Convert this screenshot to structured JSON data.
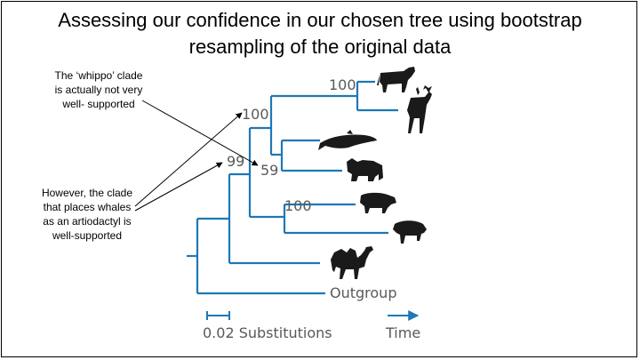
{
  "slide": {
    "title_line1": "Assessing our confidence in our chosen tree using bootstrap",
    "title_line2": "resampling of the original data"
  },
  "annotations": {
    "whippo_note": [
      "The ‘whippo’ clade",
      "is actually not very",
      "well- supported"
    ],
    "artiodactyl_note": [
      "However, the clade",
      "that places whales",
      "as an artiodactyl is",
      "well-supported"
    ]
  },
  "tree": {
    "bootstrap_values": {
      "cow_deer": "100",
      "ruminant_group": "100",
      "artiodactyl": "99",
      "whippo": "59",
      "pig_peccary": "100"
    },
    "outgroup_label": "Outgroup",
    "scale_label": "0.02 Substitutions",
    "time_label": "Time",
    "taxa_icons": [
      "cow-icon",
      "deer-icon",
      "whale-icon",
      "hippo-icon",
      "pig-icon",
      "peccary-icon",
      "camel-icon"
    ],
    "colors": {
      "branch": "#1f78b4",
      "labels": "#595959",
      "icons": "#1a1a1a"
    }
  }
}
